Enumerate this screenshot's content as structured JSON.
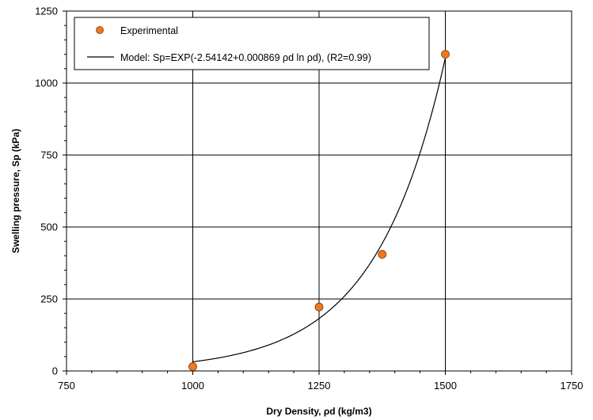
{
  "chart_data": {
    "type": "scatter",
    "xlabel": "Dry Density, ρd (kg/m3)",
    "ylabel": "Swelling pressure, Sp (kPa)",
    "xlim": [
      750,
      1750
    ],
    "ylim": [
      0,
      1250
    ],
    "xticks": [
      750,
      1000,
      1250,
      1500,
      1750
    ],
    "yticks": [
      0,
      250,
      500,
      750,
      1000,
      1250
    ],
    "grid": "major gridlines at 250 intervals",
    "legend_position": "top-left",
    "series": [
      {
        "name": "Experimental",
        "kind": "markers",
        "color": "#F07820",
        "x": [
          1000,
          1250,
          1375,
          1500
        ],
        "y": [
          15,
          222,
          405,
          1100
        ]
      },
      {
        "name": "Model: Sp=EXP(-2.54142+0.000869 ρd ln ρd), (R2=0.99)",
        "kind": "line",
        "color": "#000000",
        "formula": {
          "a": -2.54142,
          "b": 0.000869
        },
        "x_start": 1000,
        "x_end": 1500
      }
    ]
  }
}
